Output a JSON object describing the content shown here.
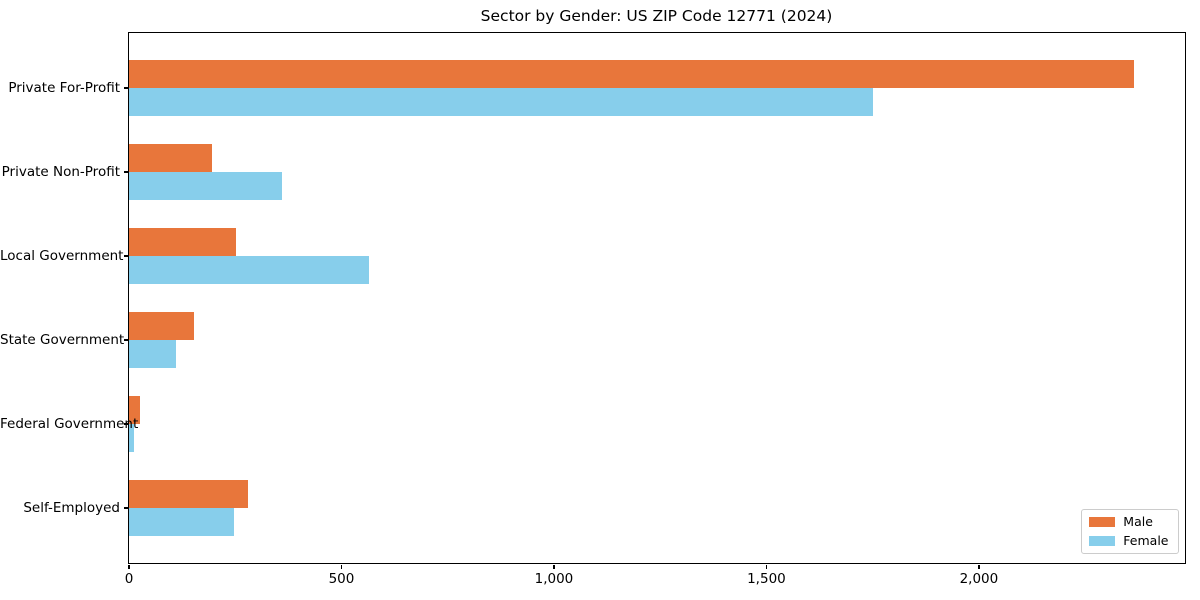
{
  "chart_data": {
    "type": "bar",
    "orientation": "horizontal",
    "title": "Sector by Gender: US ZIP Code 12771 (2024)",
    "categories": [
      "Private For-Profit",
      "Private Non-Profit",
      "Local Government",
      "State Government",
      "Federal Government",
      "Self-Employed"
    ],
    "series": [
      {
        "name": "Male",
        "color": "#e8763b",
        "values": [
          2367,
          196,
          252,
          154,
          28,
          282
        ]
      },
      {
        "name": "Female",
        "color": "#87ceeb",
        "values": [
          1753,
          362,
          567,
          111,
          12,
          249
        ]
      }
    ],
    "xlabel": "",
    "ylabel": "",
    "xlim": [
      0,
      2485
    ],
    "xticks": [
      0,
      500,
      1000,
      1500,
      2000
    ],
    "xtick_labels": [
      "0",
      "500",
      "1,000",
      "1,500",
      "2,000"
    ],
    "grid": false,
    "legend_position": "lower right",
    "axis_color": "#000000",
    "legend_border_color": "#cccccc"
  }
}
